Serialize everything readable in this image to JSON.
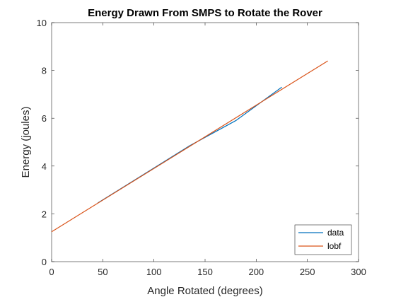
{
  "chart_data": {
    "type": "line",
    "title": "Energy Drawn From SMPS to Rotate the Rover",
    "xlabel": "Angle Rotated (degrees)",
    "ylabel": "Energy (joules)",
    "xlim": [
      0,
      300
    ],
    "ylim": [
      0,
      10
    ],
    "xticks": [
      0,
      50,
      100,
      150,
      200,
      250,
      300
    ],
    "yticks": [
      0,
      2,
      4,
      6,
      8,
      10
    ],
    "grid": false,
    "legend_position": "bottom-right",
    "series": [
      {
        "name": "data",
        "color": "#0072BD",
        "x": [
          45,
          90,
          135,
          180,
          225
        ],
        "y": [
          2.45,
          3.65,
          4.85,
          5.9,
          7.3
        ]
      },
      {
        "name": "lobf",
        "color": "#D95319",
        "x": [
          0,
          270
        ],
        "y": [
          1.25,
          8.4
        ]
      }
    ]
  }
}
